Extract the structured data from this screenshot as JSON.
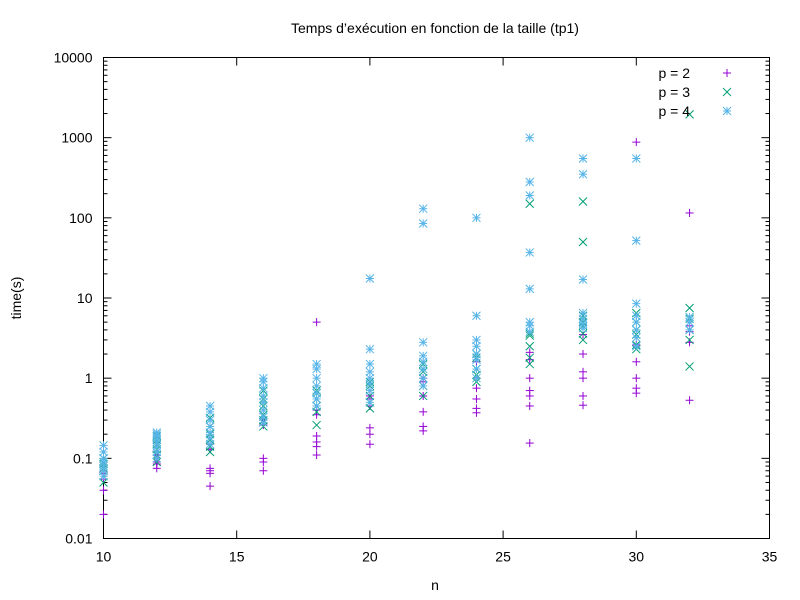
{
  "chart_data": {
    "type": "scatter",
    "title": "Temps d’exécution en fonction de la taille (tp1)",
    "xlabel": "n",
    "ylabel": "time(s)",
    "xlim": [
      10,
      35
    ],
    "ylim": [
      0.01,
      10000
    ],
    "y_scale": "log",
    "grid": false,
    "legend_position": "top-right",
    "x_ticks": [
      "10",
      "15",
      "20",
      "25",
      "30",
      "35"
    ],
    "y_ticks": [
      "0.01",
      "0.1",
      "1",
      "10",
      "100",
      "1000",
      "10000"
    ],
    "series": [
      {
        "name": "p = 2",
        "color": "#9400d3",
        "marker": "plus",
        "points": [
          [
            10,
            0.02
          ],
          [
            10,
            0.04
          ],
          [
            10,
            0.055
          ],
          [
            10,
            0.065
          ],
          [
            10,
            0.07
          ],
          [
            10,
            0.08
          ],
          [
            10,
            0.09
          ],
          [
            12,
            0.075
          ],
          [
            12,
            0.085
          ],
          [
            12,
            0.09
          ],
          [
            12,
            0.1
          ],
          [
            12,
            0.11
          ],
          [
            12,
            0.12
          ],
          [
            14,
            0.045
          ],
          [
            14,
            0.065
          ],
          [
            14,
            0.07
          ],
          [
            14,
            0.075
          ],
          [
            14,
            0.13
          ],
          [
            14,
            0.15
          ],
          [
            16,
            0.07
          ],
          [
            16,
            0.09
          ],
          [
            16,
            0.1
          ],
          [
            16,
            0.26
          ],
          [
            16,
            0.3
          ],
          [
            18,
            5.0
          ],
          [
            18,
            0.11
          ],
          [
            18,
            0.14
          ],
          [
            18,
            0.16
          ],
          [
            18,
            0.19
          ],
          [
            18,
            0.35
          ],
          [
            18,
            0.4
          ],
          [
            20,
            0.15
          ],
          [
            20,
            0.2
          ],
          [
            20,
            0.24
          ],
          [
            20,
            0.45
          ],
          [
            20,
            0.55
          ],
          [
            20,
            0.6
          ],
          [
            22,
            0.22
          ],
          [
            22,
            0.25
          ],
          [
            22,
            0.38
          ],
          [
            22,
            0.6
          ],
          [
            22,
            0.9
          ],
          [
            22,
            1.0
          ],
          [
            24,
            0.37
          ],
          [
            24,
            0.42
          ],
          [
            24,
            0.55
          ],
          [
            24,
            0.75
          ],
          [
            24,
            1.0
          ],
          [
            24,
            1.6
          ],
          [
            26,
            0.155
          ],
          [
            26,
            0.45
          ],
          [
            26,
            0.6
          ],
          [
            26,
            0.7
          ],
          [
            26,
            1.0
          ],
          [
            26,
            1.7
          ],
          [
            26,
            2.1
          ],
          [
            28,
            0.46
          ],
          [
            28,
            0.6
          ],
          [
            28,
            1.0
          ],
          [
            28,
            1.2
          ],
          [
            28,
            2.0
          ],
          [
            28,
            3.5
          ],
          [
            30,
            880
          ],
          [
            30,
            0.65
          ],
          [
            30,
            0.75
          ],
          [
            30,
            1.0
          ],
          [
            30,
            1.6
          ],
          [
            30,
            2.6
          ],
          [
            32,
            115
          ],
          [
            32,
            0.53
          ],
          [
            32,
            2.8
          ],
          [
            32,
            3.8
          ],
          [
            32,
            4.5
          ]
        ]
      },
      {
        "name": "p = 3",
        "color": "#009e73",
        "marker": "cross",
        "points": [
          [
            10,
            0.05
          ],
          [
            10,
            0.06
          ],
          [
            10,
            0.07
          ],
          [
            10,
            0.075
          ],
          [
            10,
            0.085
          ],
          [
            10,
            0.09
          ],
          [
            10,
            0.1
          ],
          [
            12,
            0.09
          ],
          [
            12,
            0.11
          ],
          [
            12,
            0.13
          ],
          [
            12,
            0.15
          ],
          [
            12,
            0.17
          ],
          [
            12,
            0.19
          ],
          [
            14,
            0.12
          ],
          [
            14,
            0.14
          ],
          [
            14,
            0.17
          ],
          [
            14,
            0.2
          ],
          [
            14,
            0.25
          ],
          [
            14,
            0.32
          ],
          [
            16,
            0.25
          ],
          [
            16,
            0.3
          ],
          [
            16,
            0.35
          ],
          [
            16,
            0.45
          ],
          [
            16,
            0.55
          ],
          [
            16,
            0.7
          ],
          [
            18,
            0.26
          ],
          [
            18,
            0.38
          ],
          [
            18,
            0.45
          ],
          [
            18,
            0.55
          ],
          [
            18,
            0.65
          ],
          [
            18,
            0.7
          ],
          [
            20,
            0.42
          ],
          [
            20,
            0.5
          ],
          [
            20,
            0.6
          ],
          [
            20,
            0.8
          ],
          [
            20,
            0.9
          ],
          [
            22,
            0.6
          ],
          [
            22,
            0.8
          ],
          [
            22,
            1.0
          ],
          [
            22,
            1.2
          ],
          [
            22,
            1.5
          ],
          [
            24,
            0.9
          ],
          [
            24,
            1.1
          ],
          [
            24,
            1.3
          ],
          [
            24,
            1.8
          ],
          [
            24,
            2.0
          ],
          [
            26,
            150
          ],
          [
            26,
            1.5
          ],
          [
            26,
            1.8
          ],
          [
            26,
            2.5
          ],
          [
            26,
            3.4
          ],
          [
            26,
            3.6
          ],
          [
            28,
            160
          ],
          [
            28,
            50
          ],
          [
            28,
            3.0
          ],
          [
            28,
            3.6
          ],
          [
            28,
            4.5
          ],
          [
            28,
            5.0
          ],
          [
            28,
            6.0
          ],
          [
            30,
            2.3
          ],
          [
            30,
            2.6
          ],
          [
            30,
            3.5
          ],
          [
            30,
            4.0
          ],
          [
            30,
            5.0
          ],
          [
            30,
            6.5
          ],
          [
            32,
            1950
          ],
          [
            32,
            1.4
          ],
          [
            32,
            3.0
          ],
          [
            32,
            4.0
          ],
          [
            32,
            5.5
          ],
          [
            32,
            7.5
          ]
        ]
      },
      {
        "name": "p = 4",
        "color": "#56b4e9",
        "marker": "star",
        "points": [
          [
            10,
            0.06
          ],
          [
            10,
            0.07
          ],
          [
            10,
            0.08
          ],
          [
            10,
            0.09
          ],
          [
            10,
            0.1
          ],
          [
            10,
            0.12
          ],
          [
            10,
            0.145
          ],
          [
            12,
            0.1
          ],
          [
            12,
            0.12
          ],
          [
            12,
            0.14
          ],
          [
            12,
            0.16
          ],
          [
            12,
            0.18
          ],
          [
            12,
            0.2
          ],
          [
            12,
            0.21
          ],
          [
            14,
            0.15
          ],
          [
            14,
            0.18
          ],
          [
            14,
            0.21
          ],
          [
            14,
            0.25
          ],
          [
            14,
            0.3
          ],
          [
            14,
            0.38
          ],
          [
            14,
            0.45
          ],
          [
            16,
            0.28
          ],
          [
            16,
            0.33
          ],
          [
            16,
            0.4
          ],
          [
            16,
            0.5
          ],
          [
            16,
            0.6
          ],
          [
            16,
            0.75
          ],
          [
            16,
            0.9
          ],
          [
            16,
            1.0
          ],
          [
            18,
            0.45
          ],
          [
            18,
            0.55
          ],
          [
            18,
            0.65
          ],
          [
            18,
            0.8
          ],
          [
            18,
            1.0
          ],
          [
            18,
            1.3
          ],
          [
            18,
            1.5
          ],
          [
            20,
            17.5
          ],
          [
            20,
            0.5
          ],
          [
            20,
            0.7
          ],
          [
            20,
            0.85
          ],
          [
            20,
            1.0
          ],
          [
            20,
            1.2
          ],
          [
            20,
            1.5
          ],
          [
            20,
            2.3
          ],
          [
            22,
            130
          ],
          [
            22,
            85
          ],
          [
            22,
            0.8
          ],
          [
            22,
            1.0
          ],
          [
            22,
            1.3
          ],
          [
            22,
            1.6
          ],
          [
            22,
            1.9
          ],
          [
            22,
            2.8
          ],
          [
            24,
            100
          ],
          [
            24,
            6.0
          ],
          [
            24,
            1.0
          ],
          [
            24,
            1.3
          ],
          [
            24,
            1.7
          ],
          [
            24,
            2.0
          ],
          [
            24,
            2.5
          ],
          [
            24,
            3.0
          ],
          [
            26,
            1000
          ],
          [
            26,
            280
          ],
          [
            26,
            190
          ],
          [
            26,
            37
          ],
          [
            26,
            13
          ],
          [
            26,
            5.0
          ],
          [
            26,
            3.8
          ],
          [
            26,
            4.5
          ],
          [
            28,
            550
          ],
          [
            28,
            350
          ],
          [
            28,
            17
          ],
          [
            28,
            6.5
          ],
          [
            28,
            5.5
          ],
          [
            28,
            4.8
          ],
          [
            28,
            4.2
          ],
          [
            30,
            550
          ],
          [
            30,
            52
          ],
          [
            30,
            8.5
          ],
          [
            30,
            6.0
          ],
          [
            30,
            5.0
          ],
          [
            30,
            4.0
          ],
          [
            30,
            3.2
          ],
          [
            30,
            2.5
          ],
          [
            32,
            5.8
          ],
          [
            32,
            5.0
          ],
          [
            32,
            4.0
          ]
        ]
      }
    ]
  }
}
